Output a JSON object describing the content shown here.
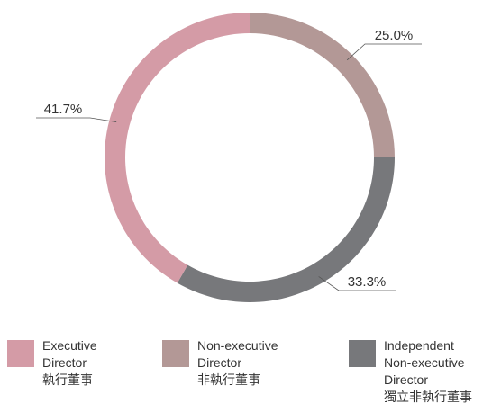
{
  "chart_data": {
    "type": "pie",
    "donut": true,
    "categories": [
      "Non-executive\nDirector\n非執行董事",
      "Independent\nNon-executive\nDirector\n獨立非執行董事",
      "Executive\nDirector\n執行董事"
    ],
    "values": [
      25.0,
      33.3,
      41.7
    ],
    "value_labels": [
      "25.0%",
      "33.3%",
      "41.7%"
    ],
    "colors": [
      "#b39896",
      "#77787b",
      "#d49ba6"
    ],
    "legend": "bottom"
  }
}
